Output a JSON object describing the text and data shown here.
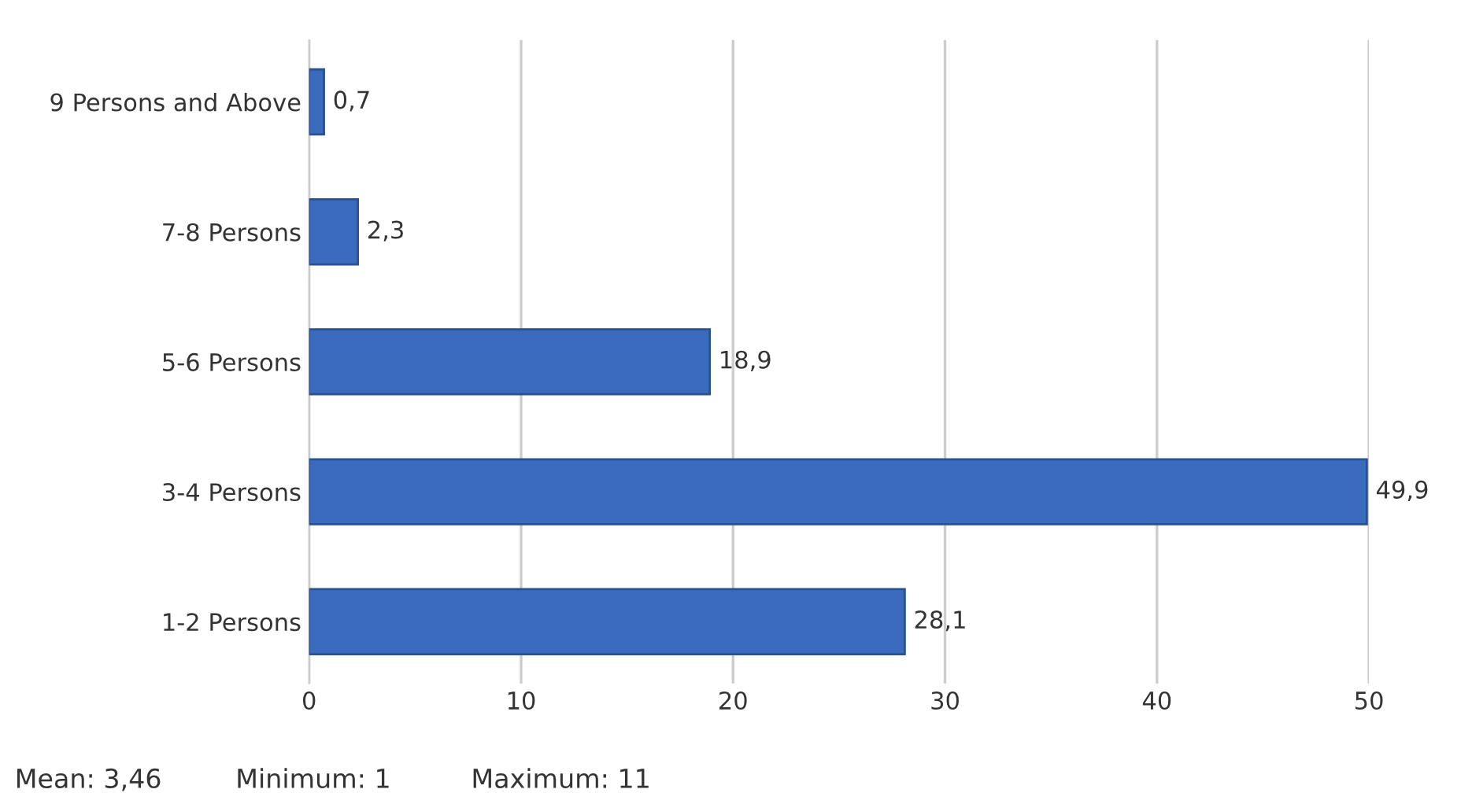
{
  "chart_data": {
    "type": "bar",
    "orientation": "horizontal",
    "categories": [
      "9 Persons and Above",
      "7-8 Persons",
      "5-6 Persons",
      "3-4 Persons",
      "1-2 Persons"
    ],
    "values": [
      0.7,
      2.3,
      18.9,
      49.9,
      28.1
    ],
    "value_labels": [
      "0,7",
      "2,3",
      "18,9",
      "49,9",
      "28,1"
    ],
    "color": "#3a6bbf",
    "xlim": [
      0,
      50
    ],
    "xticks": [
      0,
      10,
      20,
      30,
      40,
      50
    ],
    "grid": "x",
    "legend": false,
    "annotations": [
      "Mean: 3,46",
      "Minimum: 1",
      "Maximum: 11"
    ]
  }
}
